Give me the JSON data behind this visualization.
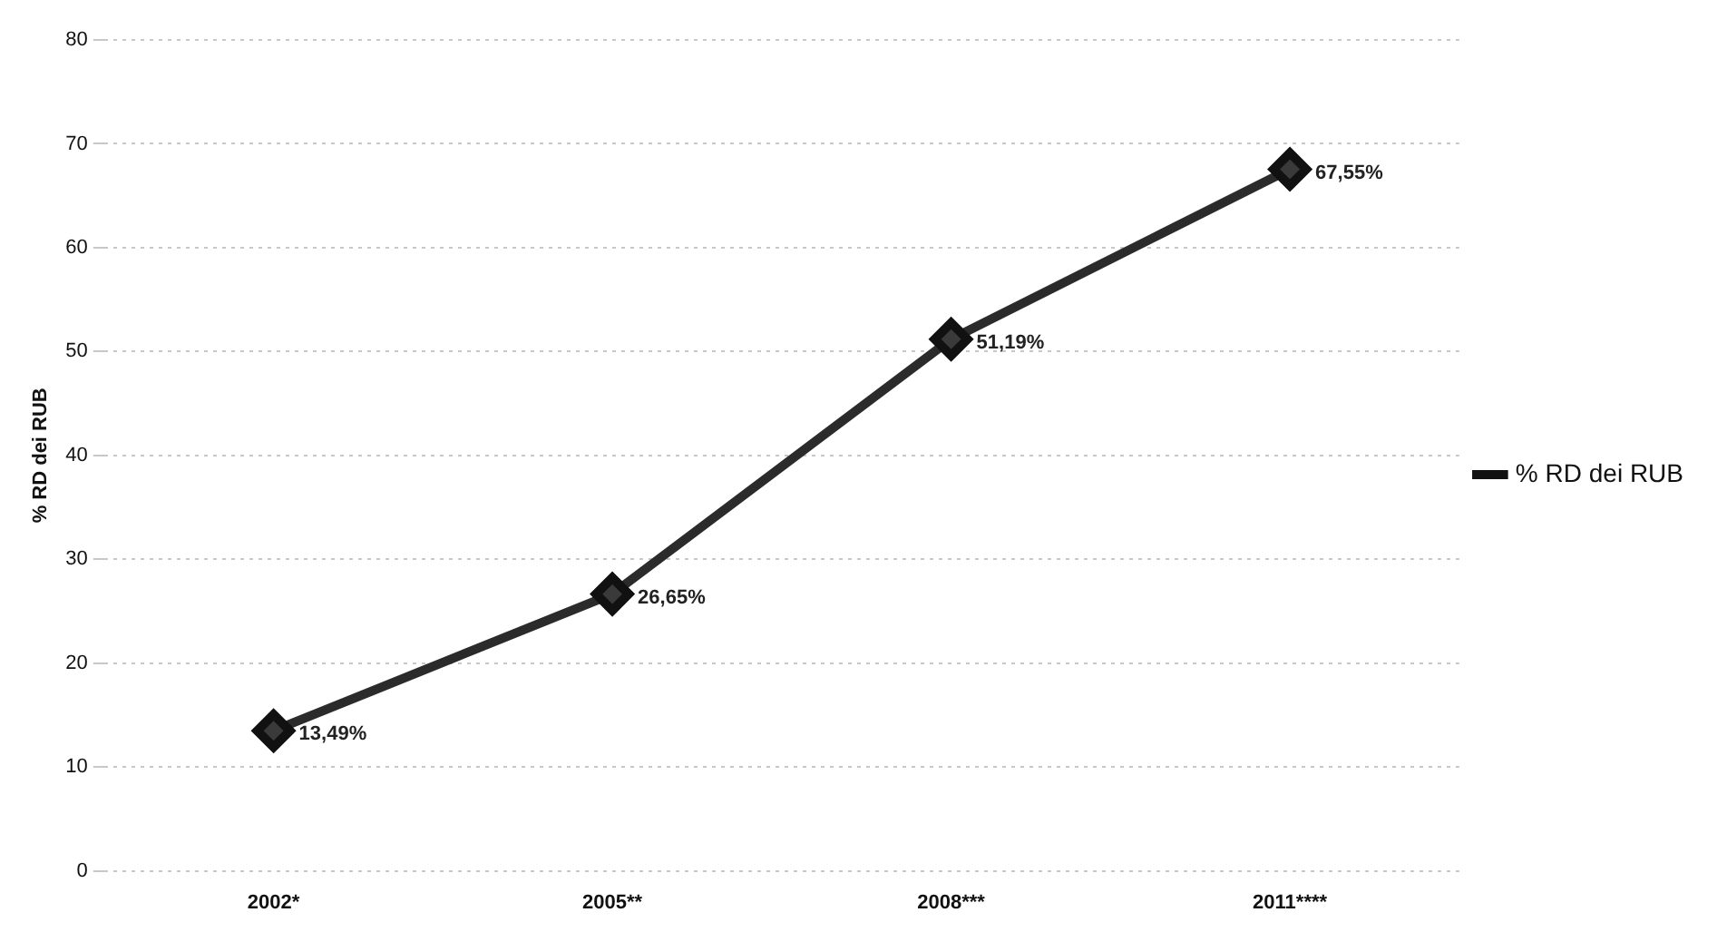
{
  "chart_data": {
    "type": "line",
    "ylabel": "% RD dei RUB",
    "categories": [
      "2002*",
      "2005**",
      "2008***",
      "2011****"
    ],
    "series": [
      {
        "name": "% RD dei RUB",
        "color": "#2b2b2b",
        "values": [
          13.49,
          26.65,
          51.19,
          67.55
        ],
        "value_labels": [
          "13,49%",
          "26,65%",
          "51,19%",
          "67,55%"
        ]
      }
    ],
    "ylim": [
      0,
      80
    ],
    "yticks": [
      0,
      10,
      20,
      30,
      40,
      50,
      60,
      70,
      80
    ],
    "grid": "y",
    "legend": "right",
    "marker": "diamond",
    "line_style": "solid"
  }
}
